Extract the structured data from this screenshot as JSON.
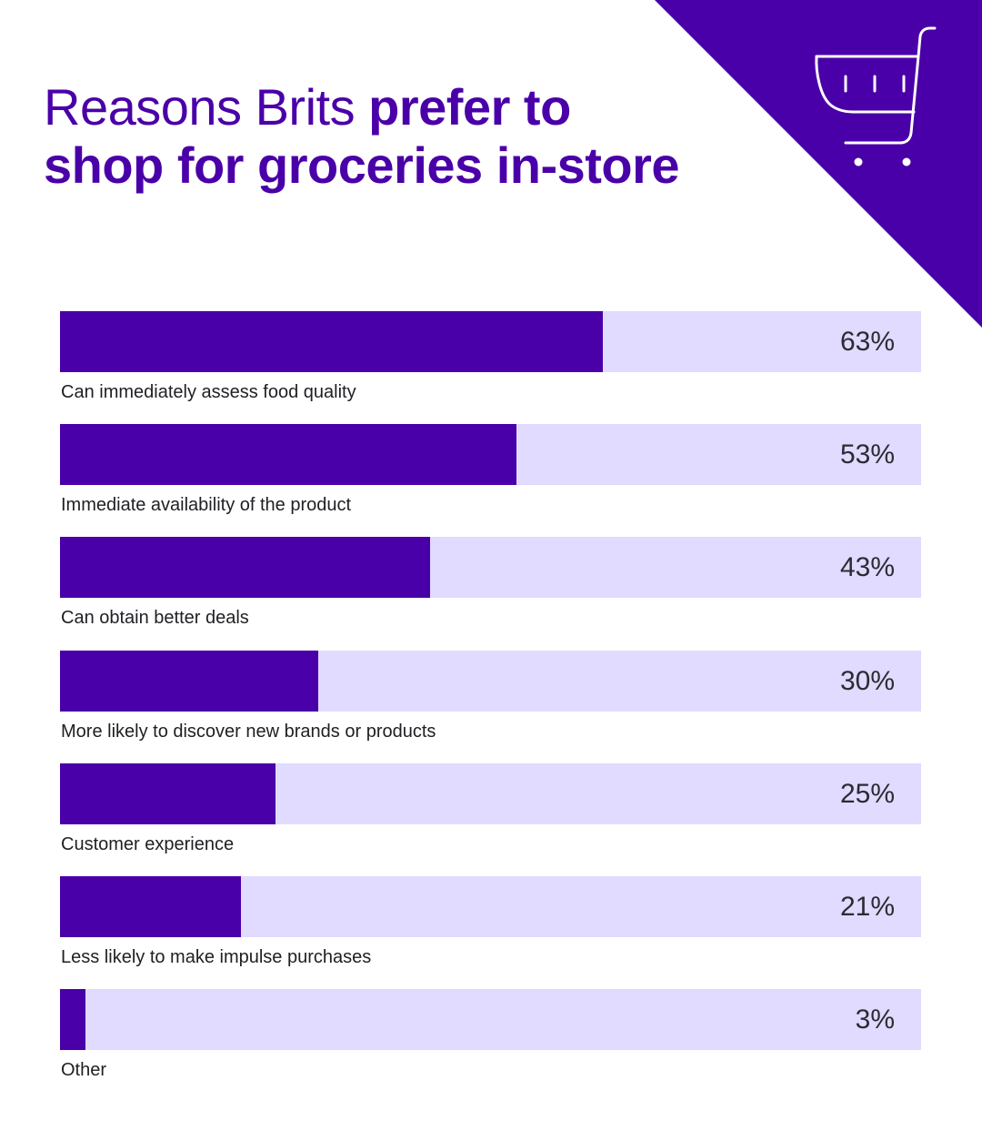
{
  "colors": {
    "accent": "#4a00a8",
    "track": "#e0dbff",
    "text": "#1f1f24"
  },
  "header": {
    "title_light": "Reasons Brits ",
    "title_bold_1": "prefer to",
    "title_bold_2": "shop for groceries in-store",
    "icon": "shopping-cart-icon"
  },
  "chart_data": {
    "type": "bar",
    "orientation": "horizontal",
    "title": "Reasons Brits prefer to shop for groceries in-store",
    "xlim": [
      0,
      100
    ],
    "unit": "%",
    "categories": [
      "Can immediately assess food quality",
      "Immediate availability of the product",
      "Can obtain better deals",
      "More likely to discover new brands or products",
      "Customer experience",
      "Less likely to make impulse purchases",
      "Other"
    ],
    "values": [
      63,
      53,
      43,
      30,
      25,
      21,
      3
    ],
    "value_labels": [
      "63%",
      "53%",
      "43%",
      "30%",
      "25%",
      "21%",
      "3%"
    ]
  }
}
